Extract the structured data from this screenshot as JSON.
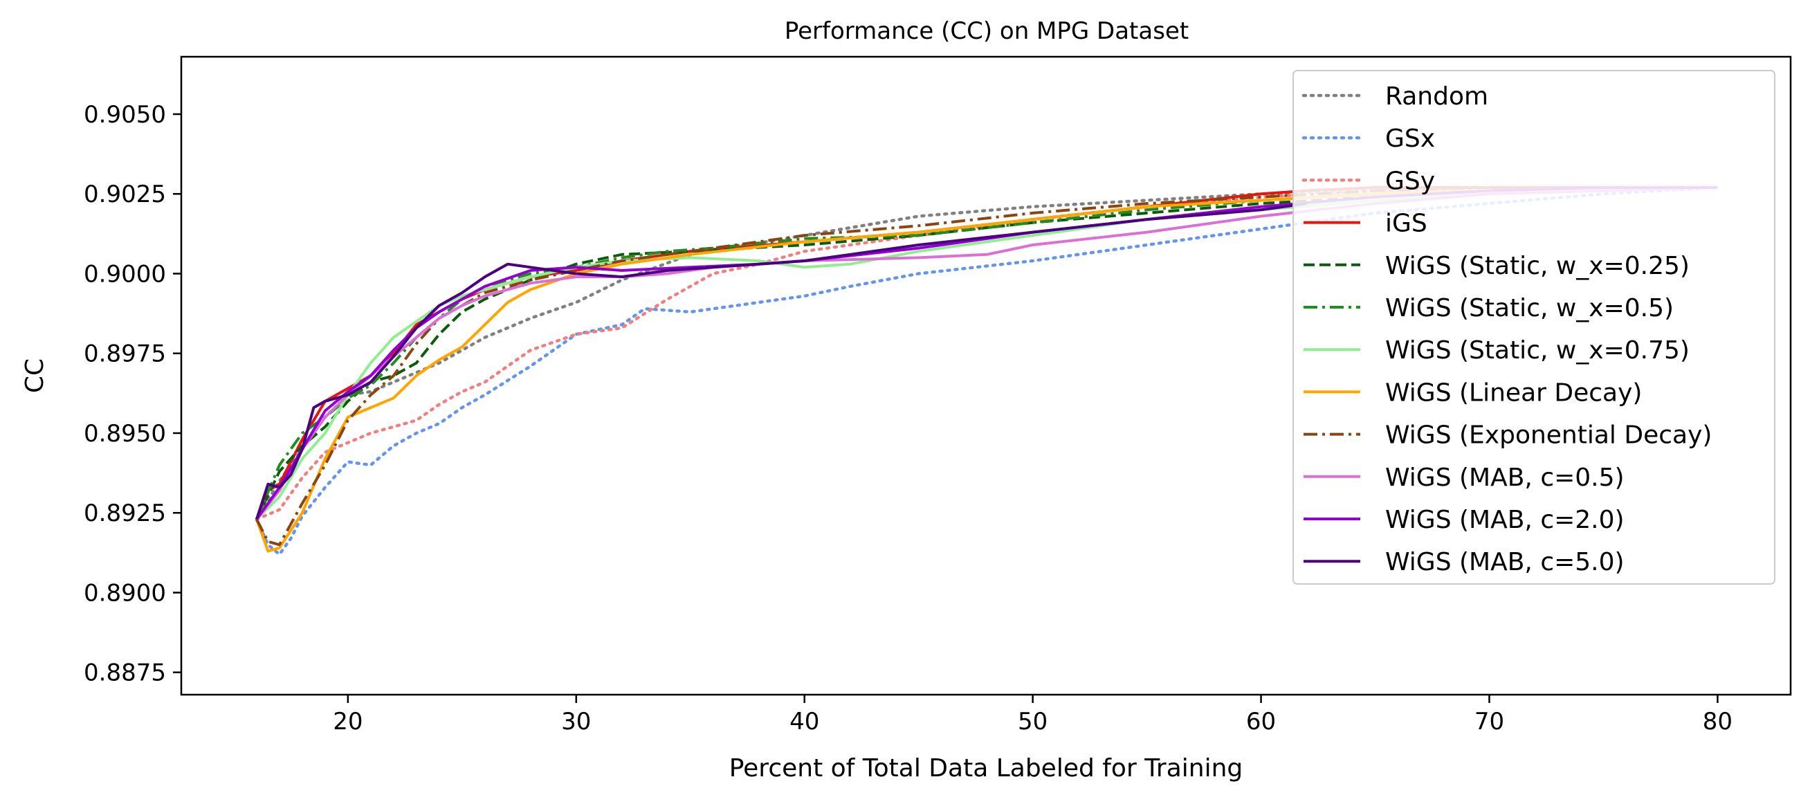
{
  "chart_data": {
    "type": "line",
    "title": "Performance (CC) on MPG Dataset",
    "xlabel": "Percent of Total Data Labeled for Training",
    "ylabel": "CC",
    "xlim": [
      12.7,
      83.2
    ],
    "ylim": [
      0.8868,
      0.9068
    ],
    "xticks": [
      20,
      30,
      40,
      50,
      60,
      70,
      80
    ],
    "yticks": [
      0.8875,
      0.89,
      0.8925,
      0.895,
      0.8975,
      0.9,
      0.9025,
      0.905
    ],
    "ytick_labels": [
      "0.8875",
      "0.8900",
      "0.8925",
      "0.8950",
      "0.8975",
      "0.9000",
      "0.9025",
      "0.9050"
    ],
    "grid": false,
    "legend": "top-right",
    "series": [
      {
        "name": "Random",
        "color": "#808080",
        "dash": "dotted",
        "x": [
          16,
          17,
          18,
          19,
          20,
          21,
          22,
          24,
          26,
          28,
          30,
          32,
          35,
          40,
          45,
          50,
          55,
          60,
          65,
          70,
          75,
          80
        ],
        "y": [
          0.8923,
          0.8935,
          0.8945,
          0.8955,
          0.8962,
          0.8963,
          0.8966,
          0.8972,
          0.898,
          0.8986,
          0.8991,
          0.8998,
          0.9006,
          0.9012,
          0.9018,
          0.9021,
          0.9023,
          0.9025,
          0.9026,
          0.9027,
          0.9027,
          0.9027
        ]
      },
      {
        "name": "GSx",
        "color": "#6495ED",
        "dash": "dotted",
        "x": [
          16,
          16.5,
          17,
          17.5,
          18,
          19,
          20,
          21,
          22,
          23,
          24,
          25,
          26,
          28,
          30,
          32,
          33,
          35,
          37,
          40,
          42,
          45,
          50,
          55,
          60,
          65,
          70,
          75,
          80
        ],
        "y": [
          0.8923,
          0.8915,
          0.8912,
          0.8917,
          0.8924,
          0.8933,
          0.8941,
          0.894,
          0.8946,
          0.895,
          0.8953,
          0.8958,
          0.8962,
          0.8971,
          0.8981,
          0.8984,
          0.8989,
          0.8988,
          0.899,
          0.8993,
          0.8996,
          0.9,
          0.9004,
          0.9009,
          0.9014,
          0.9019,
          0.9022,
          0.9025,
          0.9027
        ]
      },
      {
        "name": "GSy",
        "color": "#F08080",
        "dash": "dotted",
        "x": [
          16,
          17,
          18,
          19,
          20,
          21,
          22,
          23,
          24,
          25,
          26,
          28,
          30,
          32,
          34,
          36,
          38,
          40,
          45,
          50,
          55,
          60,
          65,
          70,
          75,
          80
        ],
        "y": [
          0.8923,
          0.8926,
          0.8936,
          0.8944,
          0.8947,
          0.895,
          0.8952,
          0.8954,
          0.8959,
          0.8963,
          0.8966,
          0.8976,
          0.8981,
          0.8983,
          0.8992,
          0.9,
          0.9003,
          0.9007,
          0.9012,
          0.9017,
          0.9021,
          0.9024,
          0.9026,
          0.9027,
          0.9027,
          0.9027
        ]
      },
      {
        "name": "iGS",
        "color": "#E8150F",
        "dash": "solid",
        "x": [
          16,
          16.5,
          17,
          18,
          19,
          20,
          21,
          22,
          23,
          24,
          25,
          26,
          28,
          30,
          32,
          35,
          40,
          45,
          50,
          55,
          60,
          62,
          65,
          70,
          75,
          80
        ],
        "y": [
          0.8923,
          0.8932,
          0.8934,
          0.8948,
          0.896,
          0.8964,
          0.8968,
          0.8975,
          0.8984,
          0.8988,
          0.8992,
          0.8995,
          0.8999,
          0.9001,
          0.9004,
          0.9007,
          0.901,
          0.9013,
          0.9017,
          0.9021,
          0.9025,
          0.9026,
          0.9027,
          0.9027,
          0.9027,
          0.9027
        ]
      },
      {
        "name": "WiGS (Static, w_x=0.25)",
        "color": "#0B5C0B",
        "dash": "dashed",
        "x": [
          16,
          17,
          18,
          19,
          20,
          21,
          22,
          23,
          24,
          25,
          26,
          28,
          30,
          32,
          35,
          40,
          45,
          50,
          55,
          60,
          65,
          70,
          75,
          80
        ],
        "y": [
          0.8923,
          0.8938,
          0.8946,
          0.8952,
          0.896,
          0.8966,
          0.8968,
          0.8972,
          0.8981,
          0.8988,
          0.8992,
          0.8998,
          0.9003,
          0.9006,
          0.9007,
          0.9009,
          0.9012,
          0.9016,
          0.9019,
          0.9022,
          0.9024,
          0.9026,
          0.9027,
          0.9027
        ]
      },
      {
        "name": "WiGS (Static, w_x=0.5)",
        "color": "#228B22",
        "dash": "dashdot",
        "x": [
          16,
          17,
          18,
          19,
          20,
          21,
          22,
          23,
          24,
          25,
          26,
          28,
          30,
          32,
          34,
          36,
          40,
          45,
          50,
          55,
          60,
          65,
          70,
          75,
          80
        ],
        "y": [
          0.8923,
          0.894,
          0.895,
          0.8955,
          0.8961,
          0.8965,
          0.8972,
          0.898,
          0.8986,
          0.8992,
          0.8996,
          0.9,
          0.9002,
          0.9005,
          0.9007,
          0.9008,
          0.9011,
          0.9012,
          0.9016,
          0.902,
          0.9023,
          0.9025,
          0.9026,
          0.9027,
          0.9027
        ]
      },
      {
        "name": "WiGS (Static, w_x=0.75)",
        "color": "#90EE90",
        "dash": "solid",
        "x": [
          16,
          17,
          18,
          19,
          20,
          21,
          22,
          23,
          24,
          25,
          26,
          28,
          30,
          32,
          35,
          38,
          40,
          42,
          45,
          50,
          55,
          60,
          65,
          70,
          75,
          80
        ],
        "y": [
          0.8923,
          0.893,
          0.8942,
          0.895,
          0.8962,
          0.8972,
          0.898,
          0.8985,
          0.899,
          0.8993,
          0.8995,
          0.8999,
          0.9002,
          0.9004,
          0.9005,
          0.9004,
          0.9002,
          0.9003,
          0.9007,
          0.9012,
          0.9017,
          0.902,
          0.9023,
          0.9025,
          0.9026,
          0.9027
        ]
      },
      {
        "name": "WiGS (Linear Decay)",
        "color": "#FFA500",
        "dash": "solid",
        "x": [
          16,
          16.5,
          17,
          18,
          19,
          20,
          21,
          22,
          23,
          24,
          25,
          26,
          27,
          28,
          30,
          32,
          35,
          40,
          45,
          50,
          55,
          60,
          65,
          70,
          75,
          80
        ],
        "y": [
          0.8923,
          0.8913,
          0.8914,
          0.8925,
          0.8942,
          0.8955,
          0.8958,
          0.8961,
          0.8968,
          0.8973,
          0.8977,
          0.8984,
          0.8991,
          0.8995,
          0.9,
          0.9003,
          0.9006,
          0.901,
          0.9013,
          0.9017,
          0.9021,
          0.9023,
          0.9025,
          0.9026,
          0.9027,
          0.9027
        ]
      },
      {
        "name": "WiGS (Exponential Decay)",
        "color": "#8B4513",
        "dash": "dashdot",
        "x": [
          16,
          16.5,
          17,
          18,
          19,
          20,
          21,
          22,
          23,
          24,
          25,
          26,
          28,
          30,
          32,
          35,
          40,
          45,
          50,
          55,
          60,
          65,
          70,
          75,
          80
        ],
        "y": [
          0.8923,
          0.8916,
          0.8915,
          0.8928,
          0.894,
          0.8954,
          0.8962,
          0.8968,
          0.8978,
          0.8986,
          0.899,
          0.8994,
          0.8998,
          0.9001,
          0.9004,
          0.9007,
          0.9012,
          0.9015,
          0.9019,
          0.9022,
          0.9024,
          0.9026,
          0.9027,
          0.9027,
          0.9027
        ]
      },
      {
        "name": "WiGS (MAB, c=0.5)",
        "color": "#DA70D6",
        "dash": "solid",
        "x": [
          16,
          17,
          18,
          19,
          20,
          21,
          22,
          23,
          24,
          25,
          26,
          28,
          30,
          32,
          34,
          36,
          40,
          45,
          48,
          50,
          55,
          60,
          65,
          70,
          75,
          80
        ],
        "y": [
          0.8923,
          0.8932,
          0.8945,
          0.8955,
          0.8962,
          0.8968,
          0.8974,
          0.898,
          0.8986,
          0.899,
          0.8993,
          0.8997,
          0.8999,
          0.8999,
          0.9,
          0.9002,
          0.9004,
          0.9005,
          0.9006,
          0.9009,
          0.9013,
          0.9018,
          0.9022,
          0.9025,
          0.9026,
          0.9027
        ]
      },
      {
        "name": "WiGS (MAB, c=2.0)",
        "color": "#9400D3",
        "dash": "solid",
        "x": [
          16,
          17,
          18,
          19,
          20,
          21,
          22,
          23,
          24,
          25,
          26,
          28,
          30,
          32,
          35,
          38,
          40,
          45,
          50,
          55,
          60,
          65,
          70,
          75,
          80
        ],
        "y": [
          0.8923,
          0.8933,
          0.8945,
          0.8957,
          0.8963,
          0.8968,
          0.8976,
          0.8983,
          0.8988,
          0.8992,
          0.8996,
          0.9001,
          0.9002,
          0.9001,
          0.9002,
          0.9003,
          0.9004,
          0.9008,
          0.9013,
          0.9017,
          0.9021,
          0.9024,
          0.9026,
          0.9027,
          0.9027
        ]
      },
      {
        "name": "WiGS (MAB, c=5.0)",
        "color": "#4B0082",
        "dash": "solid",
        "x": [
          16,
          16.5,
          17,
          17.5,
          18,
          18.5,
          19,
          20,
          21,
          22,
          23,
          24,
          25,
          26,
          27,
          28,
          30,
          32,
          34,
          36,
          38,
          40,
          42,
          45,
          50,
          55,
          60,
          62
        ],
        "y": [
          0.8923,
          0.8934,
          0.8933,
          0.8937,
          0.8945,
          0.8958,
          0.896,
          0.8962,
          0.8966,
          0.8974,
          0.8983,
          0.899,
          0.8994,
          0.8999,
          0.9003,
          0.9002,
          0.9,
          0.8999,
          0.9001,
          0.9002,
          0.9003,
          0.9004,
          0.9006,
          0.9009,
          0.9013,
          0.9017,
          0.902,
          0.9022
        ]
      }
    ]
  }
}
